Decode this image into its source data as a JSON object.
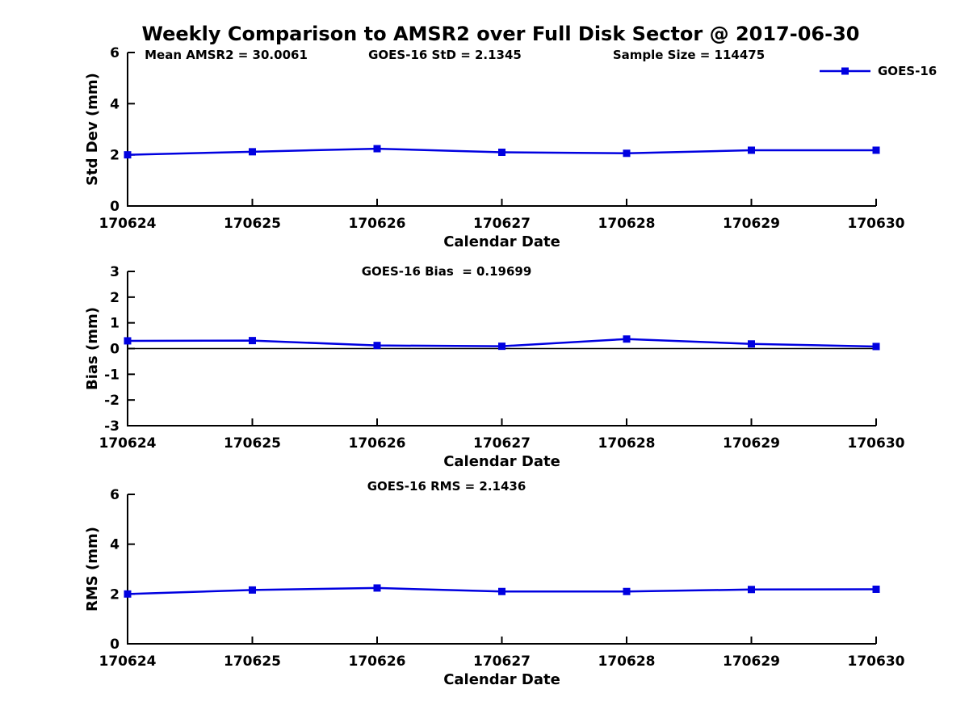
{
  "figure": {
    "title": "Weekly Comparison to AMSR2 over Full Disk Sector @ 2017-06-30",
    "colors": {
      "line": "#0000e0",
      "marker": "#0000e0",
      "axis": "#000000",
      "zero_line": "#000000",
      "text": "#000000",
      "background": "#ffffff"
    }
  },
  "chart_data": [
    {
      "type": "line",
      "panel": "std_dev",
      "annotations": [
        "Mean AMSR2 = 30.0061",
        "GOES-16 StD = 2.1345",
        "Sample Size = 114475"
      ],
      "xlabel": "Calendar Date",
      "ylabel": "Std Dev (mm)",
      "categories": [
        "170624",
        "170625",
        "170626",
        "170627",
        "170628",
        "170629",
        "170630"
      ],
      "series": [
        {
          "name": "GOES-16",
          "values": [
            2.0,
            2.12,
            2.24,
            2.1,
            2.06,
            2.18,
            2.18
          ]
        }
      ],
      "ylim": [
        0,
        6
      ],
      "yticks": [
        0,
        2,
        4,
        6
      ],
      "grid": false,
      "zero_line": false,
      "legend": {
        "visible": true,
        "label": "GOES-16",
        "position": "top-right"
      }
    },
    {
      "type": "line",
      "panel": "bias",
      "annotations": [
        "GOES-16 Bias  = 0.19699"
      ],
      "xlabel": "Calendar Date",
      "ylabel": "Bias (mm)",
      "categories": [
        "170624",
        "170625",
        "170626",
        "170627",
        "170628",
        "170629",
        "170630"
      ],
      "series": [
        {
          "name": "GOES-16",
          "values": [
            0.3,
            0.31,
            0.12,
            0.09,
            0.37,
            0.18,
            0.08
          ]
        }
      ],
      "ylim": [
        -3,
        3
      ],
      "yticks": [
        -3,
        -2,
        -1,
        0,
        1,
        2,
        3
      ],
      "grid": false,
      "zero_line": true,
      "legend": {
        "visible": false
      }
    },
    {
      "type": "line",
      "panel": "rms",
      "annotations": [
        "GOES-16 RMS = 2.1436"
      ],
      "xlabel": "Calendar Date",
      "ylabel": "RMS (mm)",
      "categories": [
        "170624",
        "170625",
        "170626",
        "170627",
        "170628",
        "170629",
        "170630"
      ],
      "series": [
        {
          "name": "GOES-16",
          "values": [
            2.0,
            2.16,
            2.24,
            2.1,
            2.1,
            2.18,
            2.19
          ]
        }
      ],
      "ylim": [
        0,
        6
      ],
      "yticks": [
        0,
        2,
        4,
        6
      ],
      "grid": false,
      "zero_line": false,
      "legend": {
        "visible": false
      }
    }
  ]
}
